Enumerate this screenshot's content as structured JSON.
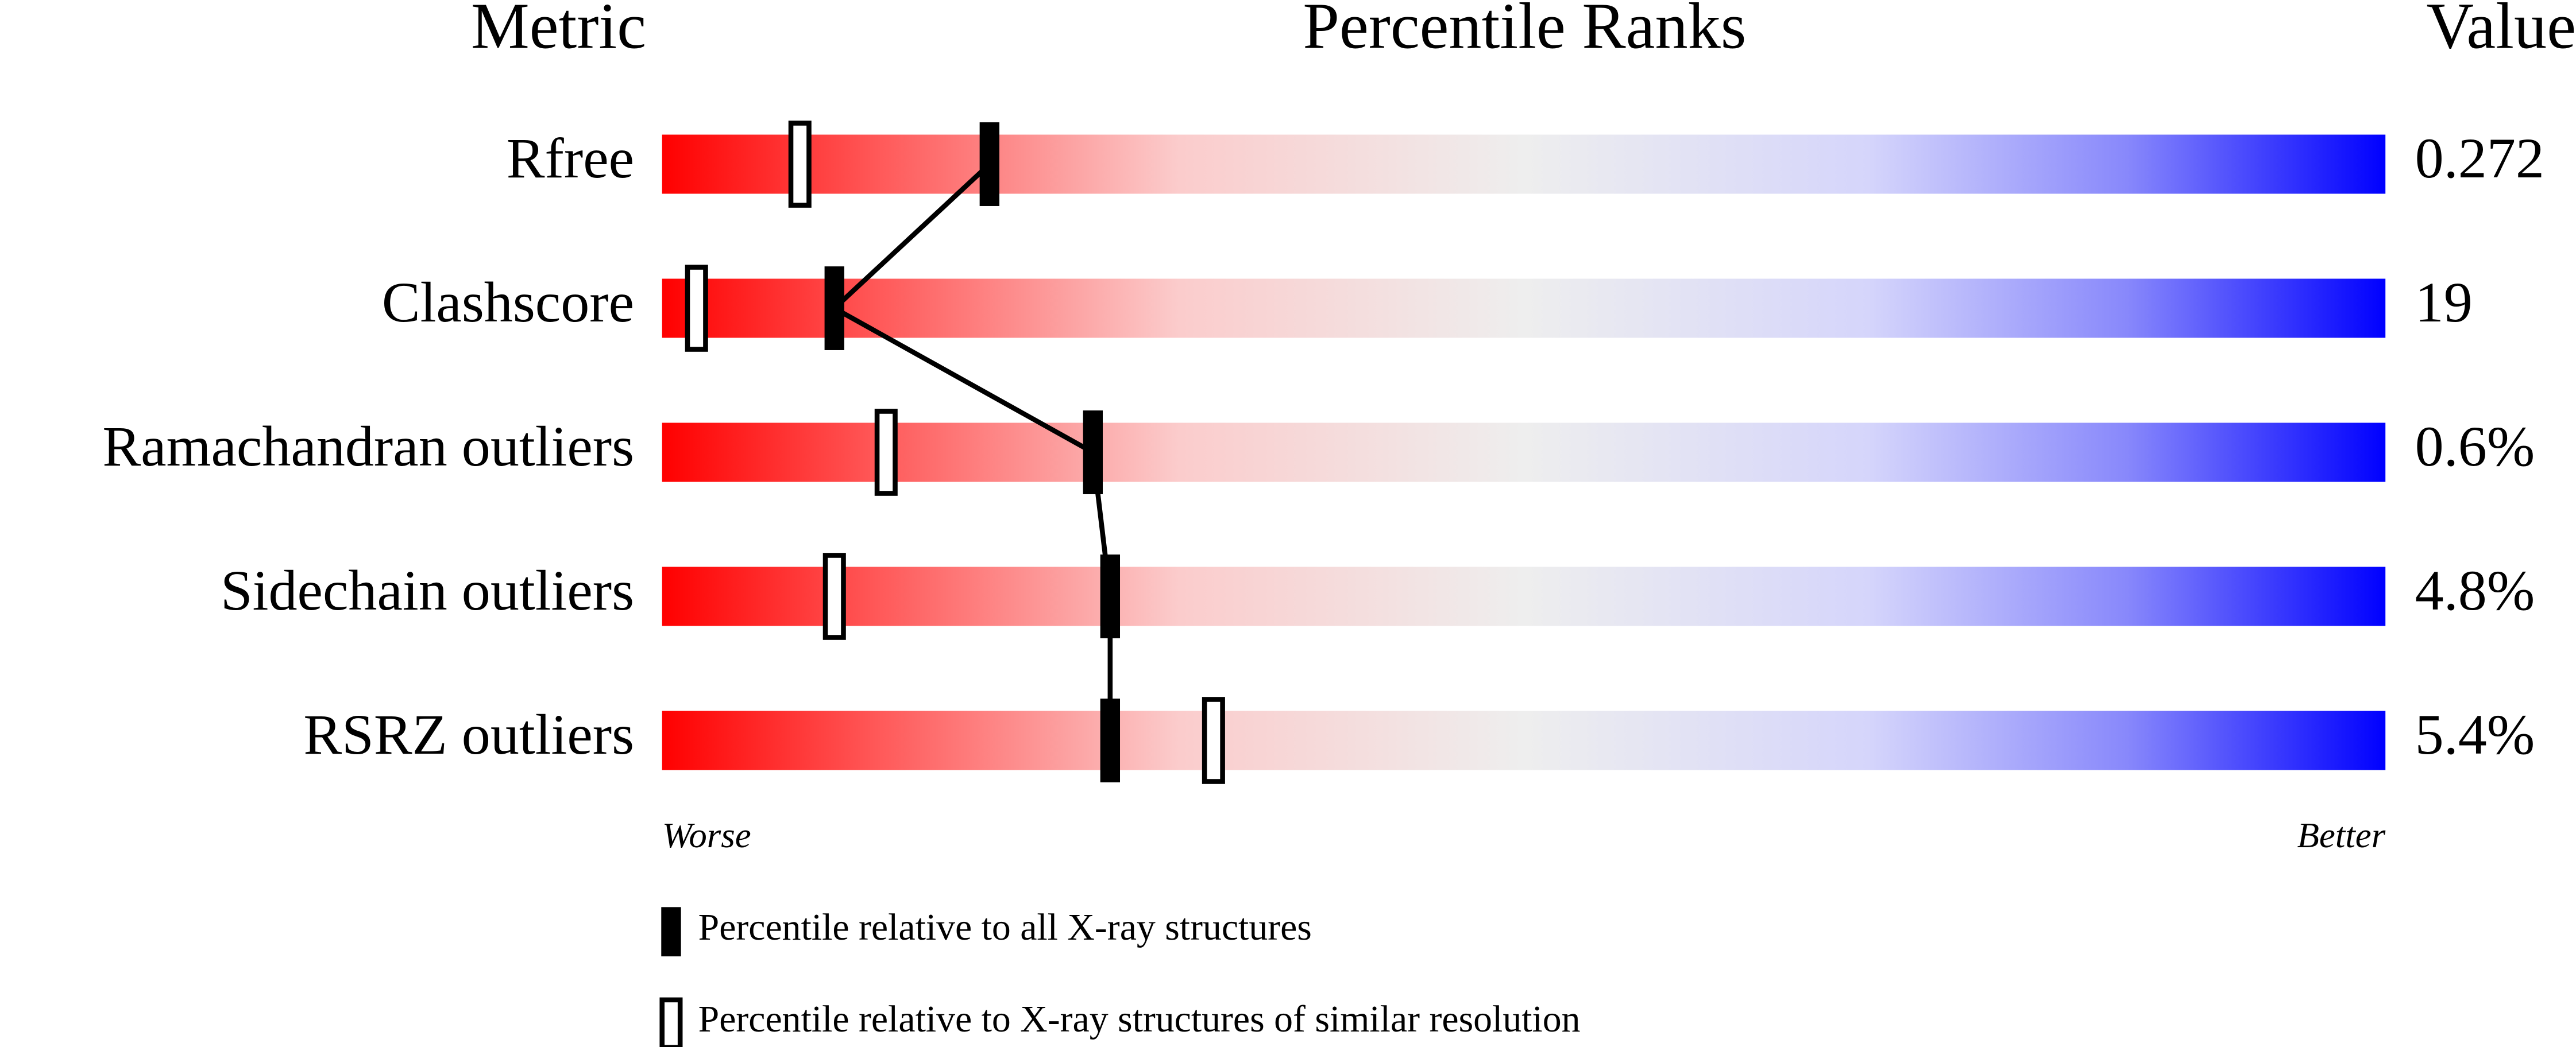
{
  "chart_data": {
    "type": "percentile",
    "title": "Percentile Ranks",
    "metric_header": "Metric",
    "value_header": "Value",
    "categories": [
      "Rfree",
      "Clashscore",
      "Ramachandran outliers",
      "Sidechain outliers",
      "RSRZ outliers"
    ],
    "metric_values": [
      0.272,
      19,
      0.6,
      4.8,
      5.4
    ],
    "metric_value_labels": [
      "0.272",
      "19",
      "0.6%",
      "4.8%",
      "5.4%"
    ],
    "xlim": [
      0,
      100
    ],
    "x_start_label": "Worse",
    "x_end_label": "Better",
    "series": [
      {
        "name": "Percentile relative to all X-ray structures",
        "color": "#000000",
        "style": "filled",
        "values": [
          19,
          10,
          25,
          26,
          26
        ]
      },
      {
        "name": "Percentile relative to X-ray structures of similar resolution",
        "color": "#000000",
        "style": "hollow",
        "values": [
          8,
          2,
          13,
          10,
          32
        ]
      }
    ]
  }
}
